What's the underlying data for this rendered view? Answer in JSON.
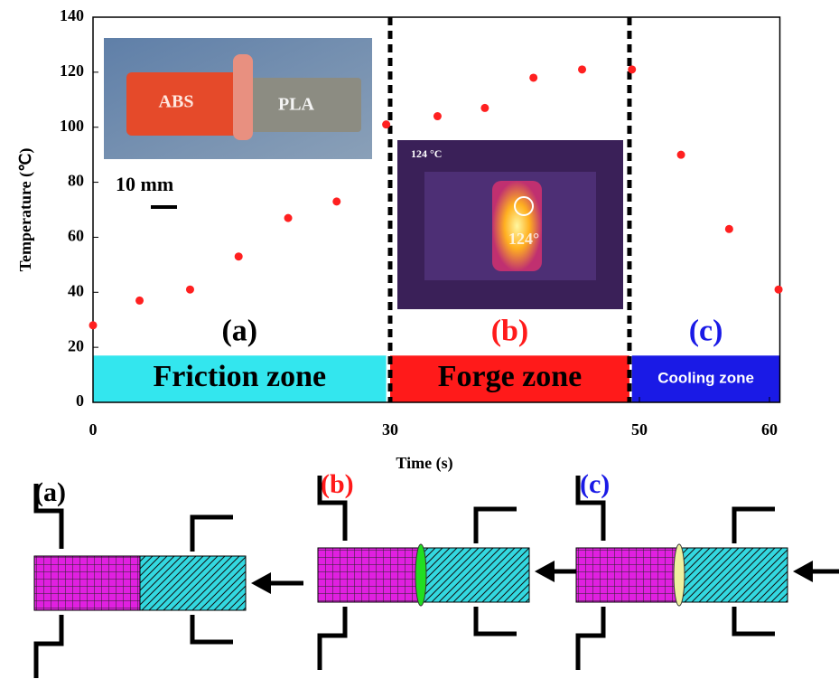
{
  "chart_data": {
    "type": "scatter",
    "xlabel": "Time (s)",
    "ylabel": "Temperature (℃)",
    "x": [
      0,
      4.7,
      9.8,
      14.7,
      19.7,
      24.6,
      29.6,
      33.8,
      37.6,
      41.5,
      45.4,
      49.4,
      53.2,
      56.9,
      60.7
    ],
    "values": [
      28,
      37,
      41,
      53,
      67,
      73,
      101,
      104,
      107,
      118,
      121,
      121,
      90,
      63,
      41
    ],
    "color": "#ff2020",
    "xlim": [
      0,
      60.8
    ],
    "ylim": [
      0,
      140
    ],
    "xticks": [
      0,
      30,
      50,
      60
    ],
    "yticks": [
      0,
      20,
      40,
      60,
      80,
      100,
      120,
      140
    ],
    "zones": [
      {
        "label": "(a)",
        "name": "Friction zone",
        "color": "#33e6ee",
        "label_color": "#000000",
        "start": 0,
        "end": 29.6
      },
      {
        "label": "(b)",
        "name": "Forge zone",
        "color": "#ff1a1a",
        "label_color": "#ff1a1a",
        "start": 30,
        "end": 49.2
      },
      {
        "label": "(c)",
        "name": "Cooling zone",
        "color": "#1a1ae6",
        "label_color": "#1a1ae6",
        "start": 49.4,
        "end": 60.8
      }
    ]
  },
  "insets": {
    "photo": {
      "left": "ABS",
      "right": "PLA",
      "scale": "10 mm"
    },
    "thermal": {
      "reading": "124 °C",
      "spot": "124°"
    }
  },
  "diagrams": [
    {
      "label": "(a)",
      "label_color": "#000000",
      "joint": null
    },
    {
      "label": "(b)",
      "label_color": "#ff1a1a",
      "joint": "#22dd22"
    },
    {
      "label": "(c)",
      "label_color": "#1a1ae6",
      "joint": "#f0f0a0"
    }
  ]
}
